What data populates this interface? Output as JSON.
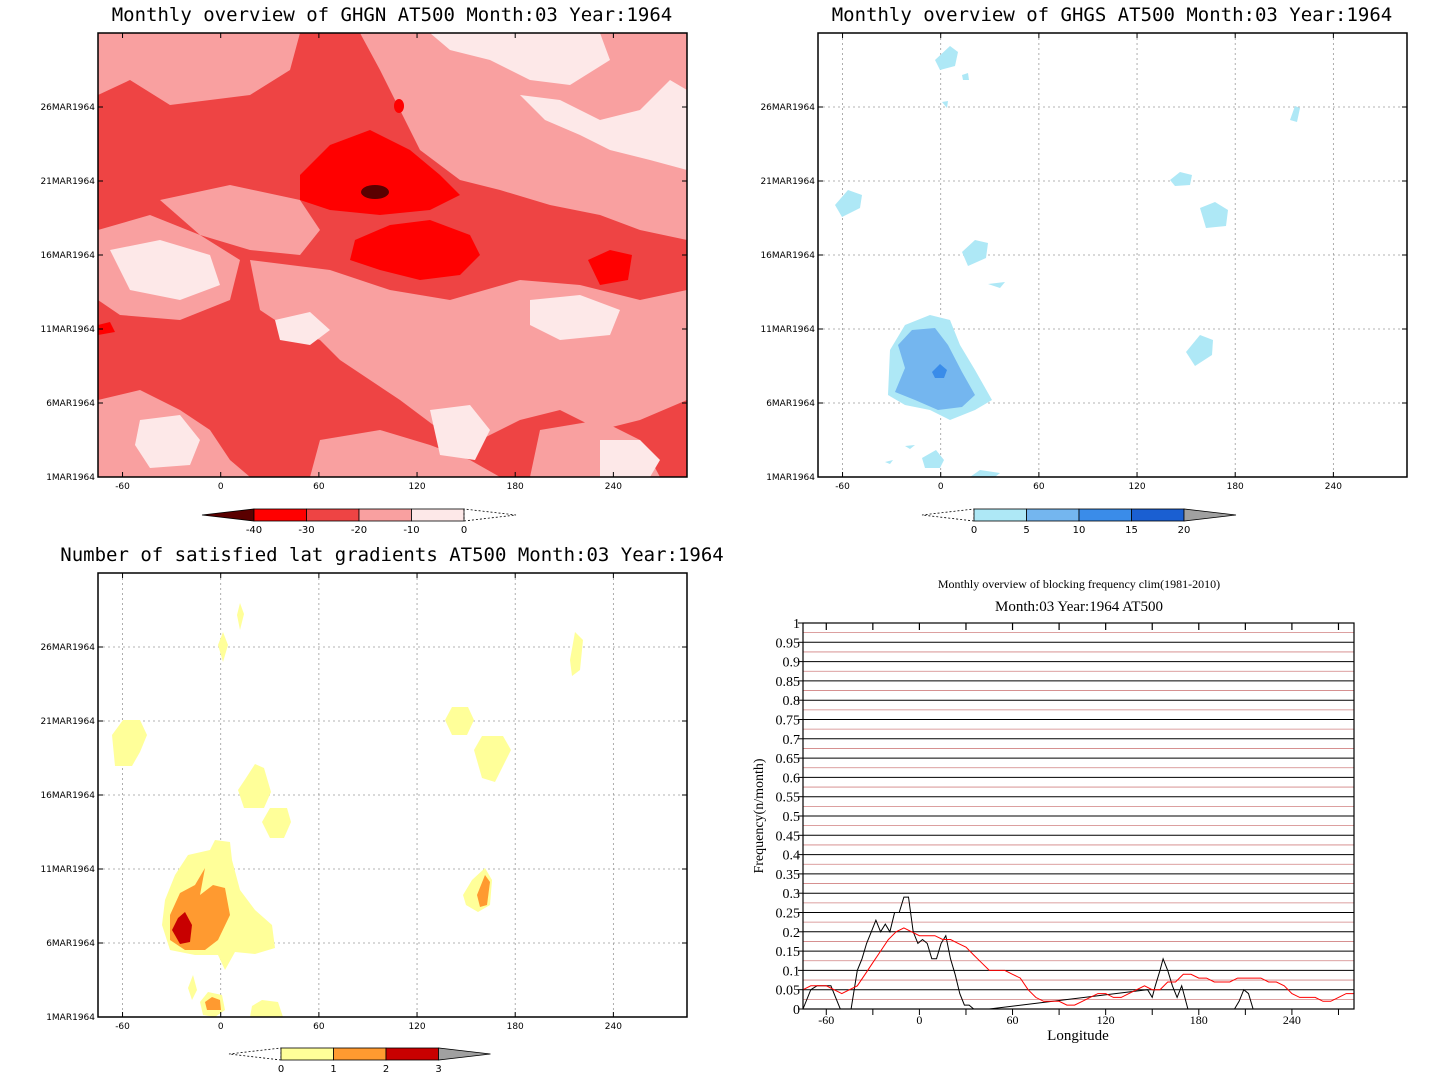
{
  "panels": [
    {
      "id": "ghgn",
      "title": "Monthly overview of GHGN AT500 Month:03 Year:1964",
      "x_ticks": [
        "-60",
        "0",
        "60",
        "120",
        "180",
        "240"
      ],
      "y_ticks": [
        "1MAR1964",
        "6MAR1964",
        "11MAR1964",
        "16MAR1964",
        "21MAR1964",
        "26MAR1964"
      ],
      "colorbar": {
        "labels": [
          "-40",
          "-30",
          "-20",
          "-10",
          "0"
        ],
        "colors": [
          "#5a0000",
          "#ff0000",
          "#ee4444",
          "#f9a0a0",
          "#fde8e8"
        ]
      }
    },
    {
      "id": "ghgs",
      "title": "Monthly overview of GHGS AT500 Month:03 Year:1964",
      "x_ticks": [
        "-60",
        "0",
        "60",
        "120",
        "180",
        "240"
      ],
      "y_ticks": [
        "1MAR1964",
        "6MAR1964",
        "11MAR1964",
        "16MAR1964",
        "21MAR1964",
        "26MAR1964"
      ],
      "colorbar": {
        "labels": [
          "0",
          "5",
          "10",
          "15",
          "20"
        ],
        "colors": [
          "#aee8f6",
          "#74b6ef",
          "#3a8ce9",
          "#1a5fd2",
          "#a0a0a0"
        ]
      }
    },
    {
      "id": "nlat",
      "title": "Number of satisfied lat gradients AT500 Month:03 Year:1964",
      "x_ticks": [
        "-60",
        "0",
        "60",
        "120",
        "180",
        "240"
      ],
      "y_ticks": [
        "1MAR1964",
        "6MAR1964",
        "11MAR1964",
        "16MAR1964",
        "21MAR1964",
        "26MAR1964"
      ],
      "colorbar": {
        "labels": [
          "0",
          "1",
          "2",
          "3"
        ],
        "colors": [
          "#ffff99",
          "#ff9a30",
          "#c80000",
          "#a0a0a0"
        ]
      }
    }
  ],
  "chart_data": {
    "type": "line",
    "title": "Monthly overview of blocking frequency clim(1981-2010)",
    "subtitle": "Month:03 Year:1964  AT500",
    "xlabel": "Longitude",
    "ylabel": "Frequency(n/month)",
    "xlim": [
      -75,
      280
    ],
    "ylim": [
      0,
      1
    ],
    "x_ticks": [
      -60,
      0,
      60,
      120,
      180,
      240
    ],
    "y_ticks": [
      "0",
      "0.05",
      "0.1",
      "0.15",
      "0.2",
      "0.25",
      "0.3",
      "0.35",
      "0.4",
      "0.45",
      "0.5",
      "0.55",
      "0.6",
      "0.65",
      "0.7",
      "0.75",
      "0.8",
      "0.85",
      "0.9",
      "0.95",
      "1"
    ],
    "grid": true,
    "series": [
      {
        "color": "#000000",
        "x": [
          -75,
          -70,
          -66,
          -62,
          -57,
          -54,
          -51,
          -46,
          -44,
          -40,
          -37,
          -34,
          -31,
          -28,
          -25,
          -22,
          -19,
          -16,
          -13,
          -10,
          -7,
          -4,
          -1,
          2,
          5,
          8,
          11,
          14,
          17,
          20,
          23,
          26,
          29,
          32,
          35,
          38,
          41,
          45,
          147,
          150,
          152,
          155,
          157,
          160,
          163,
          166,
          169,
          173,
          177,
          203,
          206,
          209,
          212,
          215
        ],
        "y": [
          0,
          0.05,
          0.06,
          0.06,
          0.06,
          0.03,
          0,
          0,
          0,
          0.1,
          0.13,
          0.17,
          0.2,
          0.23,
          0.2,
          0.22,
          0.2,
          0.25,
          0.25,
          0.29,
          0.29,
          0.2,
          0.17,
          0.18,
          0.17,
          0.13,
          0.13,
          0.17,
          0.19,
          0.13,
          0.09,
          0.04,
          0.01,
          0.01,
          0,
          0,
          0,
          0,
          0.05,
          0.03,
          0.06,
          0.1,
          0.13,
          0.1,
          0.06,
          0.03,
          0.06,
          0,
          0,
          0,
          0.02,
          0.05,
          0.04,
          0
        ]
      },
      {
        "color": "#ff0000",
        "x": [
          -75,
          -70,
          -65,
          -60,
          -55,
          -50,
          -45,
          -40,
          -35,
          -30,
          -25,
          -20,
          -15,
          -10,
          -5,
          0,
          5,
          10,
          15,
          20,
          25,
          30,
          35,
          40,
          45,
          50,
          55,
          60,
          65,
          70,
          75,
          80,
          85,
          90,
          95,
          100,
          105,
          110,
          115,
          120,
          125,
          130,
          135,
          140,
          145,
          150,
          155,
          160,
          165,
          170,
          175,
          180,
          185,
          190,
          195,
          200,
          205,
          210,
          215,
          220,
          225,
          230,
          235,
          240,
          245,
          250,
          255,
          260,
          265,
          270,
          275,
          280
        ],
        "y": [
          0.05,
          0.06,
          0.06,
          0.06,
          0.05,
          0.04,
          0.05,
          0.06,
          0.09,
          0.12,
          0.15,
          0.18,
          0.2,
          0.21,
          0.2,
          0.19,
          0.19,
          0.19,
          0.18,
          0.18,
          0.17,
          0.16,
          0.14,
          0.12,
          0.1,
          0.1,
          0.1,
          0.09,
          0.08,
          0.05,
          0.03,
          0.02,
          0.02,
          0.02,
          0.01,
          0.01,
          0.02,
          0.03,
          0.04,
          0.04,
          0.03,
          0.03,
          0.04,
          0.05,
          0.06,
          0.05,
          0.05,
          0.07,
          0.07,
          0.09,
          0.09,
          0.08,
          0.08,
          0.07,
          0.07,
          0.07,
          0.08,
          0.08,
          0.08,
          0.08,
          0.07,
          0.07,
          0.06,
          0.04,
          0.03,
          0.03,
          0.03,
          0.02,
          0.02,
          0.03,
          0.04,
          0.04
        ]
      }
    ]
  }
}
